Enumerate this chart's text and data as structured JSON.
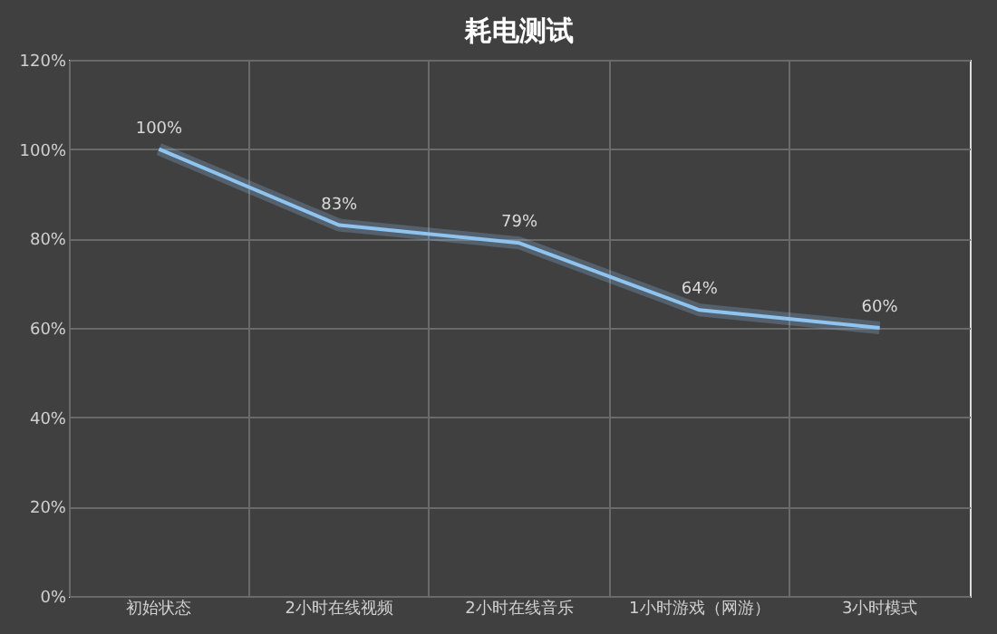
{
  "chart_data": {
    "type": "line",
    "title": "耗电测试",
    "categories": [
      "初始状态",
      "2小时在线视频",
      "2小时在线音乐",
      "1小时游戏（网游）",
      "3小时模式"
    ],
    "series": [
      {
        "color": "#8fc3f0",
        "values": [
          100,
          83,
          79,
          64,
          60
        ]
      }
    ],
    "value_labels": [
      "100%",
      "83%",
      "79%",
      "64%",
      "60%"
    ],
    "ylim": [
      0,
      120
    ],
    "yticks": [
      {
        "value": 0,
        "label": "0%"
      },
      {
        "value": 20,
        "label": "20%"
      },
      {
        "value": 40,
        "label": "40%"
      },
      {
        "value": 60,
        "label": "60%"
      },
      {
        "value": 80,
        "label": "80%"
      },
      {
        "value": 100,
        "label": "100%"
      },
      {
        "value": 120,
        "label": "120%"
      }
    ],
    "grid": true,
    "marker": "none",
    "line_style": "solid"
  }
}
